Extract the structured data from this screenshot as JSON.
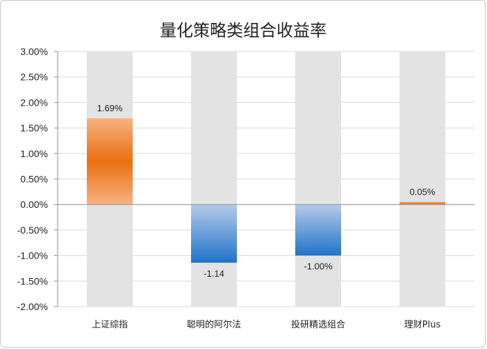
{
  "chart_data": {
    "type": "bar",
    "title": "量化策略类组合收益率",
    "categories": [
      "上证综指",
      "聪明的阿尔法",
      "投研精选组合",
      "理财Plus"
    ],
    "values": [
      1.69,
      -1.14,
      -1.0,
      0.05
    ],
    "data_labels": [
      "1.69%",
      "-1.14",
      "-1.00%",
      "0.05%"
    ],
    "ylim": [
      -2.0,
      3.0
    ],
    "y_ticks": [
      3.0,
      2.5,
      2.0,
      1.5,
      1.0,
      0.5,
      0.0,
      -0.5,
      -1.0,
      -1.5,
      -2.0
    ],
    "y_tick_labels": [
      "3.00%",
      "2.50%",
      "2.00%",
      "1.50%",
      "1.00%",
      "0.50%",
      "0.00%",
      "-0.50%",
      "-1.00%",
      "-1.50%",
      "-2.00%"
    ],
    "xlabel": "",
    "ylabel": "",
    "grid": true,
    "legend": "none",
    "background_bar_color": "#e3e3e3",
    "positive_colors": [
      "#f8b282",
      "#e8700f"
    ],
    "negative_colors": [
      "#b5cbe8",
      "#1f73c9"
    ],
    "grid_color": "#d9d9d9",
    "axis_color": "#8c8c8c"
  }
}
